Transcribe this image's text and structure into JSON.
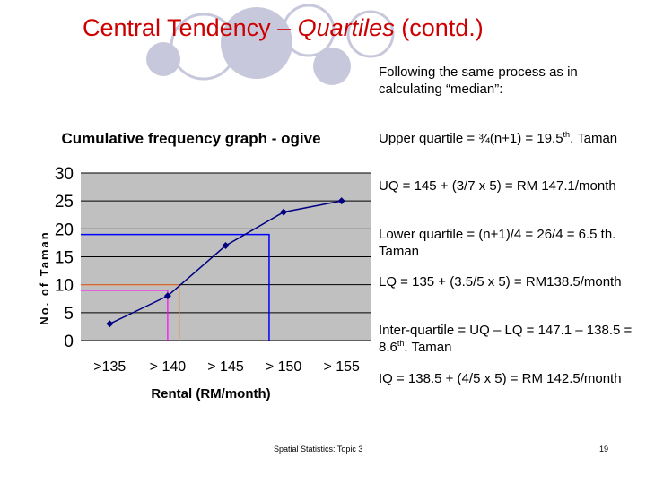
{
  "slide": {
    "title_main": "Central Tendency – ",
    "title_italic": "Quartiles",
    "title_end": " (contd.)",
    "bullets": {
      "b1": "Following the same process as in calculating “median”:",
      "b2_pre": "Upper quartile = ¾(n+1) = 19.5",
      "b2_sup": "th",
      "b2_post": ". Taman",
      "b3": "UQ = 145 + (3/7 x 5) = RM 147.1/month",
      "b4": "Lower quartile = (n+1)/4 = 26/4 = 6.5 th. Taman",
      "b5": "LQ = 135 + (3.5/5 x 5) = RM138.5/month",
      "b6_pre": "Inter-quartile = UQ – LQ = 147.1 – 138.5 = 8.6",
      "b6_sup": "th",
      "b6_post": ". Taman",
      "b7": "IQ = 138.5 + (4/5 x 5) = RM 142.5/month"
    },
    "footer_left": "Spatial Statistics: Topic 3",
    "footer_right": "19"
  },
  "colors": {
    "title": "#cc0000",
    "plot_bg": "#c0c0c0",
    "series": "#000080",
    "uq_line": "#0000ff",
    "lq_line": "#ff00ff",
    "lq_line2": "#ff8040",
    "circles": "#c8c8dc"
  },
  "chart_data": {
    "type": "line",
    "title": "Cumulative frequency graph - ogive",
    "xlabel": "Rental (RM/month)",
    "ylabel": "No. of Taman",
    "categories": [
      ">135",
      "> 140",
      "> 145",
      "> 150",
      "> 155"
    ],
    "values": [
      3,
      8,
      17,
      23,
      25
    ],
    "yticks": [
      "0",
      "5",
      "10",
      "15",
      "20",
      "25",
      "30"
    ],
    "ylim": [
      0,
      30
    ],
    "grid": true,
    "annotations": {
      "uq_y": 19,
      "uq_x_category_position": 2.75,
      "lq_y": 9,
      "lq_x_category_position": 1.0,
      "lq2_x_category_position": 1.2
    }
  }
}
